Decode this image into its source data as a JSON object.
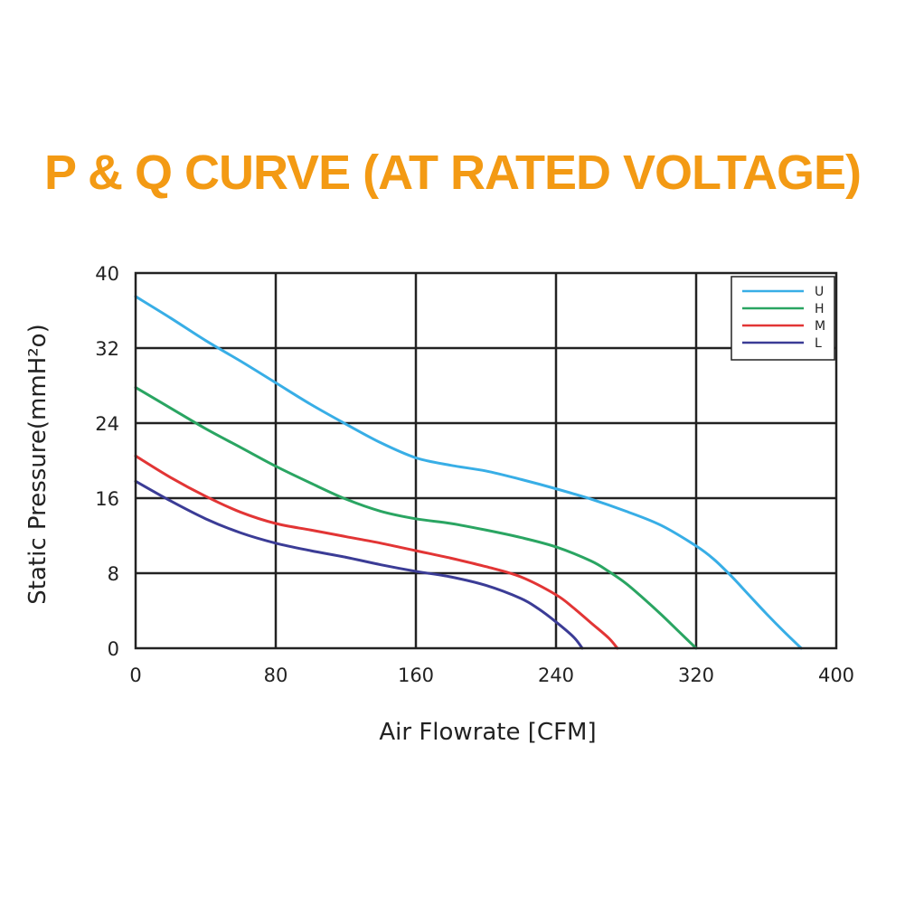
{
  "chart_data": {
    "type": "line",
    "title": "P & Q CURVE (AT RATED VOLTAGE)",
    "title_color": "#f39a14",
    "xlabel": "Air  Flowrate   [CFM]",
    "ylabel": "Static Pressure(mmH²o)",
    "xlim": [
      0,
      400
    ],
    "ylim": [
      0,
      40
    ],
    "xticks": [
      0,
      80,
      160,
      240,
      320,
      400
    ],
    "yticks": [
      0,
      8,
      16,
      24,
      32,
      40
    ],
    "grid": true,
    "legend_position": "top-right",
    "series": [
      {
        "name": "U",
        "color": "#38aee6",
        "x": [
          0,
          20,
          40,
          60,
          80,
          100,
          120,
          140,
          160,
          180,
          200,
          220,
          240,
          260,
          280,
          300,
          320,
          330,
          340,
          350,
          360,
          370,
          380
        ],
        "y": [
          37.5,
          35.2,
          32.8,
          30.6,
          28.3,
          26.0,
          23.9,
          21.9,
          20.3,
          19.5,
          18.9,
          18.0,
          17.0,
          15.9,
          14.6,
          13.1,
          10.9,
          9.5,
          7.7,
          5.7,
          3.7,
          1.8,
          0
        ]
      },
      {
        "name": "H",
        "color": "#2aa562",
        "x": [
          0,
          20,
          40,
          60,
          80,
          100,
          120,
          140,
          160,
          180,
          200,
          220,
          240,
          260,
          270,
          280,
          290,
          300,
          310,
          320
        ],
        "y": [
          27.8,
          25.6,
          23.4,
          21.4,
          19.4,
          17.6,
          15.9,
          14.6,
          13.8,
          13.3,
          12.6,
          11.8,
          10.8,
          9.3,
          8.2,
          6.9,
          5.3,
          3.6,
          1.8,
          0
        ]
      },
      {
        "name": "M",
        "color": "#e23535",
        "x": [
          0,
          20,
          40,
          60,
          80,
          100,
          120,
          140,
          160,
          180,
          200,
          220,
          240,
          250,
          260,
          270,
          275
        ],
        "y": [
          20.5,
          18.2,
          16.2,
          14.5,
          13.3,
          12.6,
          11.9,
          11.2,
          10.4,
          9.6,
          8.7,
          7.6,
          5.7,
          4.3,
          2.7,
          1.1,
          0
        ]
      },
      {
        "name": "L",
        "color": "#3b3c96",
        "x": [
          0,
          20,
          40,
          60,
          80,
          100,
          120,
          140,
          160,
          180,
          200,
          220,
          230,
          240,
          250,
          255
        ],
        "y": [
          17.8,
          15.7,
          13.8,
          12.3,
          11.2,
          10.4,
          9.7,
          8.9,
          8.2,
          7.6,
          6.7,
          5.3,
          4.2,
          2.8,
          1.2,
          0
        ]
      }
    ]
  }
}
